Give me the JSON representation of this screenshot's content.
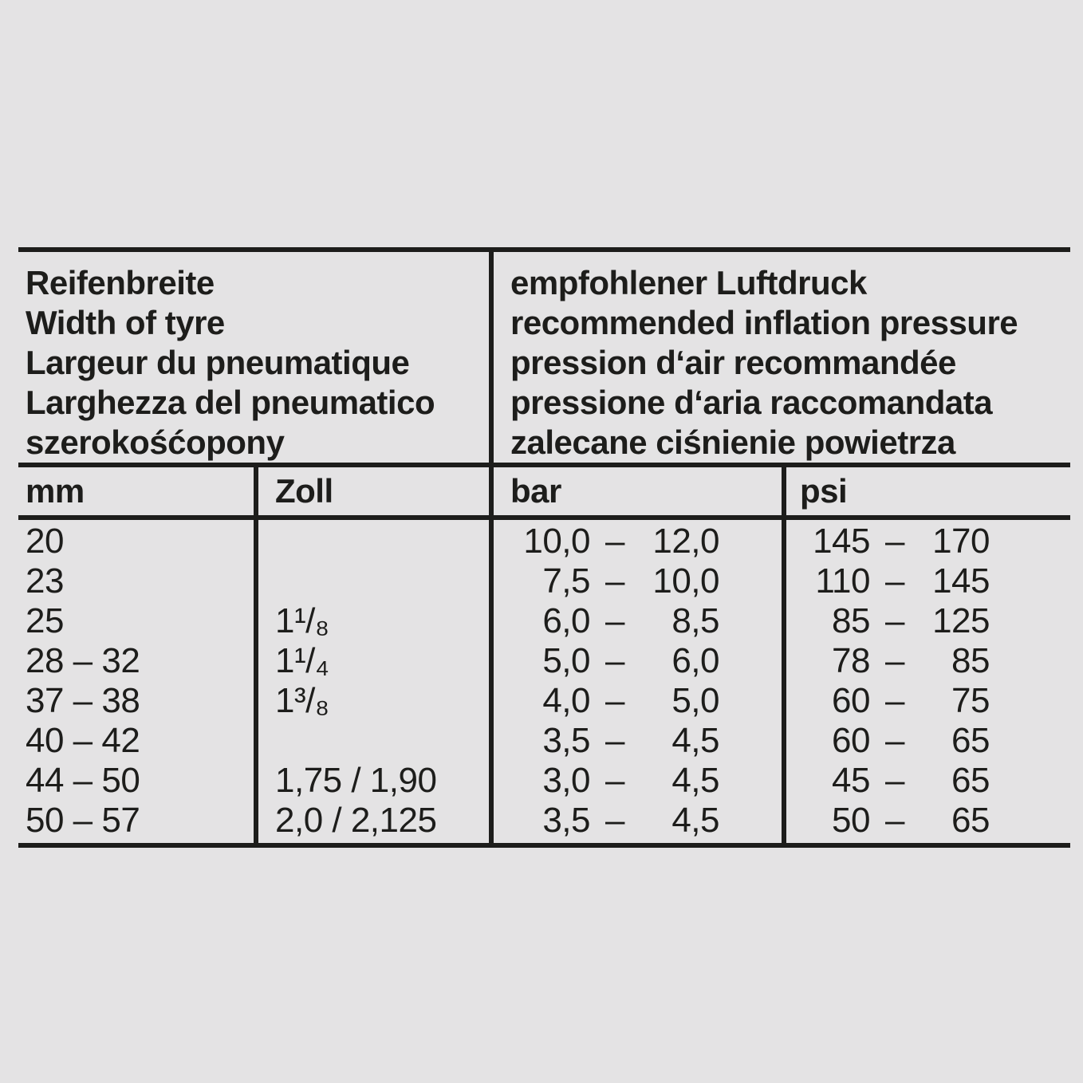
{
  "colors": {
    "background": "#e4e3e4",
    "text": "#1d1d1b",
    "rule": "#1d1d1b"
  },
  "table": {
    "header_left": {
      "lines": [
        "Reifenbreite",
        "Width of tyre",
        "Largeur du pneumatique",
        "Larghezza del pneumatico",
        "szerokośćopony"
      ]
    },
    "header_right": {
      "lines": [
        "empfohlener Luftdruck",
        "recommended inflation pressure",
        "pression d‘air recommandée",
        "pressione d‘aria raccomandata",
        "zalecane ciśnienie powietrza"
      ]
    },
    "columns": {
      "mm": "mm",
      "zoll": "Zoll",
      "bar": "bar",
      "psi": "psi"
    },
    "range_separator": "–",
    "rows": [
      {
        "mm": "20",
        "zoll": "",
        "bar_low": "10,0",
        "bar_high": "12,0",
        "psi_low": "145",
        "psi_high": "170"
      },
      {
        "mm": "23",
        "zoll": "",
        "bar_low": "7,5",
        "bar_high": "10,0",
        "psi_low": "110",
        "psi_high": "145"
      },
      {
        "mm": "25",
        "zoll": "1¹/₈",
        "bar_low": "6,0",
        "bar_high": "8,5",
        "psi_low": "85",
        "psi_high": "125"
      },
      {
        "mm": "28 – 32",
        "zoll": "1¹/₄",
        "bar_low": "5,0",
        "bar_high": "6,0",
        "psi_low": "78",
        "psi_high": "85"
      },
      {
        "mm": "37 – 38",
        "zoll": "1³/₈",
        "bar_low": "4,0",
        "bar_high": "5,0",
        "psi_low": "60",
        "psi_high": "75"
      },
      {
        "mm": "40 – 42",
        "zoll": "",
        "bar_low": "3,5",
        "bar_high": "4,5",
        "psi_low": "60",
        "psi_high": "65"
      },
      {
        "mm": "44 – 50",
        "zoll": "1,75 / 1,90",
        "bar_low": "3,0",
        "bar_high": "4,5",
        "psi_low": "45",
        "psi_high": "65"
      },
      {
        "mm": "50 – 57",
        "zoll": "2,0 / 2,125",
        "bar_low": "3,5",
        "bar_high": "4,5",
        "psi_low": "50",
        "psi_high": "65"
      }
    ]
  }
}
